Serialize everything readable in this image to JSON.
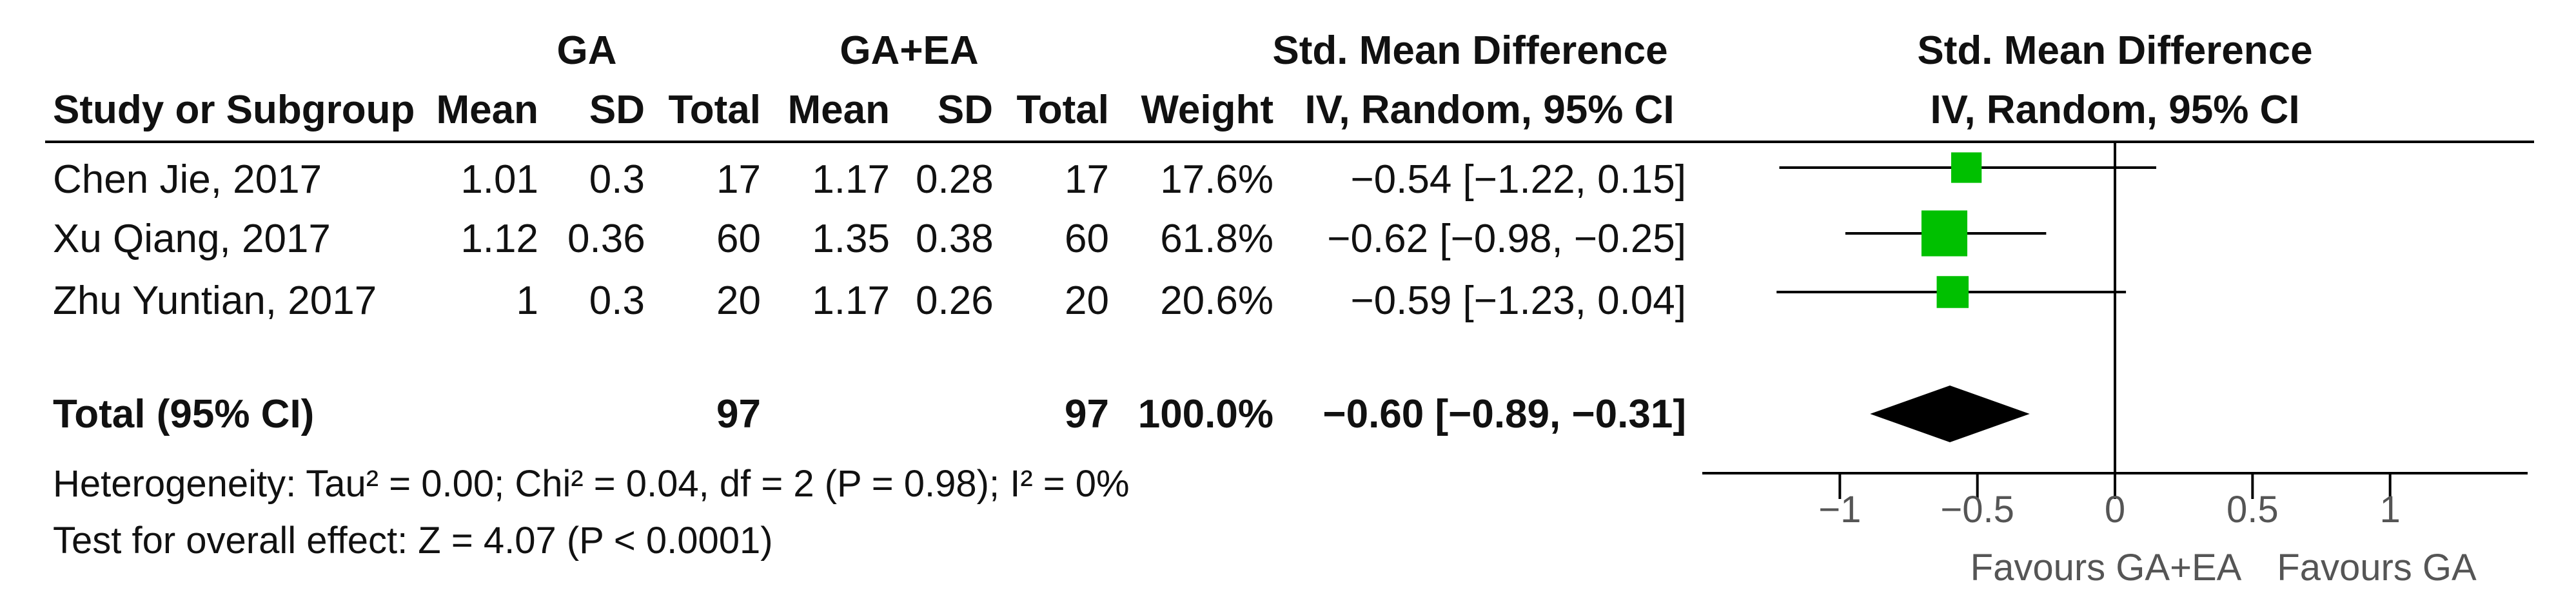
{
  "header": {
    "group1": "GA",
    "group2": "GA+EA",
    "effect_title": "Std. Mean Difference",
    "plot_title": "Std. Mean Difference",
    "study_col": "Study or Subgroup",
    "mean1": "Mean",
    "sd1": "SD",
    "total1": "Total",
    "mean2": "Mean",
    "sd2": "SD",
    "total2": "Total",
    "weight": "Weight",
    "method": "IV, Random, 95% CI",
    "plot_method": "IV, Random, 95% CI"
  },
  "studies": [
    {
      "name": "Chen Jie, 2017",
      "mean1": "1.01",
      "sd1": "0.3",
      "total1": "17",
      "mean2": "1.17",
      "sd2": "0.28",
      "total2": "17",
      "weight": "17.6%",
      "ci": "−0.54 [−1.22, 0.15]"
    },
    {
      "name": "Xu Qiang, 2017",
      "mean1": "1.12",
      "sd1": "0.36",
      "total1": "60",
      "mean2": "1.35",
      "sd2": "0.38",
      "total2": "60",
      "weight": "61.8%",
      "ci": "−0.62 [−0.98, −0.25]"
    },
    {
      "name": "Zhu Yuntian, 2017",
      "mean1": "1",
      "sd1": "0.3",
      "total1": "20",
      "mean2": "1.17",
      "sd2": "0.26",
      "total2": "20",
      "weight": "20.6%",
      "ci": "−0.59 [−1.23, 0.04]"
    }
  ],
  "total": {
    "label": "Total (95% CI)",
    "total1": "97",
    "total2": "97",
    "weight": "100.0%",
    "ci": "−0.60 [−0.89, −0.31]"
  },
  "heterogeneity": "Heterogeneity: Tau² = 0.00; Chi² = 0.04, df = 2 (P = 0.98); I² = 0%",
  "overall_effect": "Test for overall effect: Z = 4.07 (P < 0.0001)",
  "favours_left": "Favours GA+EA",
  "favours_right": "Favours GA",
  "colors": {
    "study_marker": "#00c000",
    "summary_diamond": "#000000",
    "line": "#000000"
  },
  "chart_data": {
    "type": "forest",
    "xlim": [
      -1.5,
      1.5
    ],
    "xticks": [
      -1,
      -0.5,
      0,
      0.5,
      1
    ],
    "tick_labels": [
      "−1",
      "−0.5",
      "0",
      "0.5",
      "1"
    ],
    "studies": [
      {
        "name": "Chen Jie, 2017",
        "estimate": -0.54,
        "lower": -1.22,
        "upper": 0.15,
        "weight": 17.6
      },
      {
        "name": "Xu Qiang, 2017",
        "estimate": -0.62,
        "lower": -0.98,
        "upper": -0.25,
        "weight": 61.8
      },
      {
        "name": "Zhu Yuntian, 2017",
        "estimate": -0.59,
        "lower": -1.23,
        "upper": 0.04,
        "weight": 20.6
      }
    ],
    "summary": {
      "estimate": -0.6,
      "lower": -0.89,
      "upper": -0.31
    }
  }
}
